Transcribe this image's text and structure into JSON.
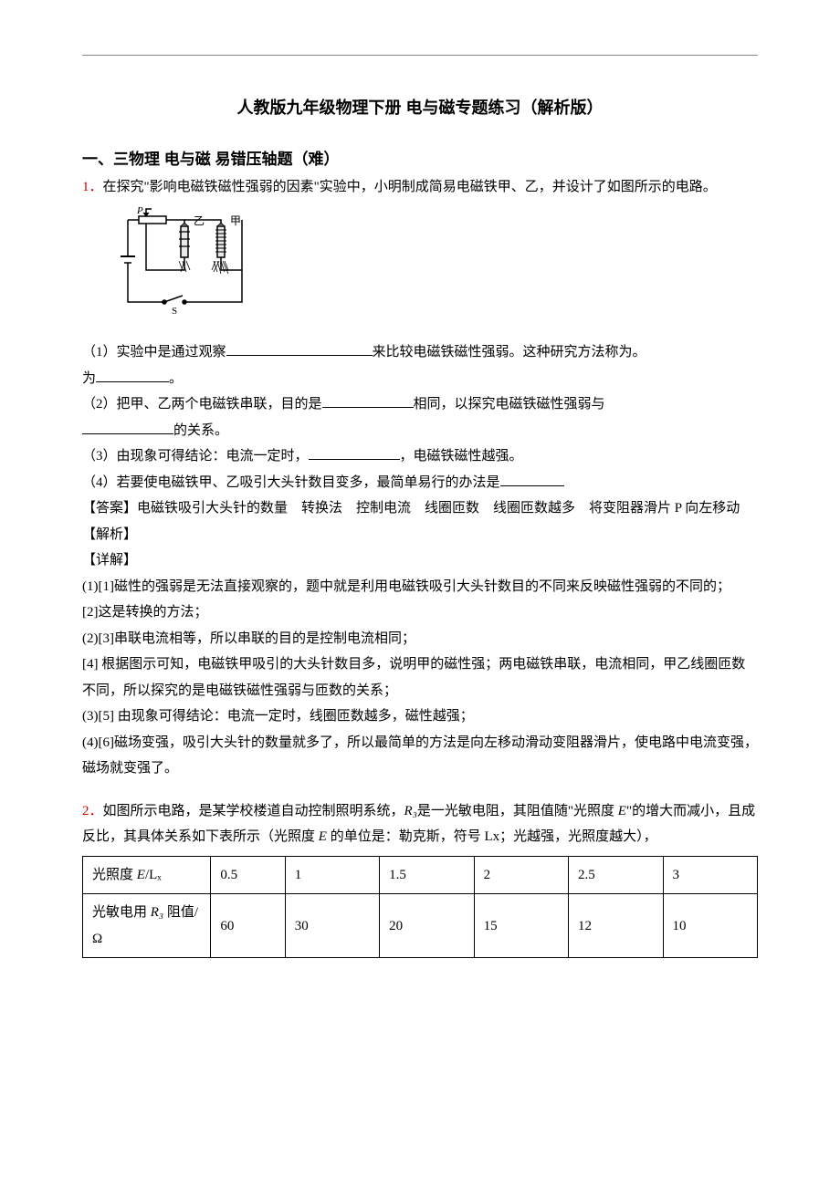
{
  "title": "人教版九年级物理下册 电与磁专题练习（解析版）",
  "section_heading": "一、三物理 电与磁 易错压轴题（难）",
  "q1": {
    "num": "1．",
    "text": "在探究\"影响电磁铁磁性强弱的因素\"实验中，小明制成简易电磁铁甲、乙，并设计了如图所示的电路。",
    "sub1_a": "（1）实验中是通过观察",
    "sub1_b": "来比较电磁铁磁性强弱。这种研究方法称为",
    "sub1_c": "。",
    "sub2_a": "（2）把甲、乙两个电磁铁串联，目的是",
    "sub2_b": "相同，以探究电磁铁磁性强弱与",
    "sub2_c": "的关系。",
    "sub3_a": "（3）由现象可得结论：电流一定时，",
    "sub3_b": "，电磁铁磁性越强。",
    "sub4_a": "（4）若要使电磁铁甲、乙吸引大头针数目变多，最简单易行的办法是",
    "ans_label": "【答案】",
    "ans_text": "电磁铁吸引大头针的数量　转换法　控制电流　线圈匝数　线圈匝数越多　将变阻器滑片 P 向左移动",
    "parse_label": "【解析】",
    "detail_label": "【详解】",
    "d1": "(1)[1]磁性的强弱是无法直接观察的，题中就是利用电磁铁吸引大头针数目的不同来反映磁性强弱的不同的；",
    "d2": "[2]这是转换的方法；",
    "d3": "(2)[3]串联电流相等，所以串联的目的是控制电流相同；",
    "d4": "[4] 根据图示可知，电磁铁甲吸引的大头针数目多，说明甲的磁性强；两电磁铁串联，电流相同，甲乙线圈匝数不同，所以探究的是电磁铁磁性强弱与匝数的关系；",
    "d5": "(3)[5] 由现象可得结论：电流一定时，线圈匝数越多，磁性越强；",
    "d6": "(4)[6]磁场变强，吸引大头针的数量就多了，所以最简单的方法是向左移动滑动变阻器滑片，使电路中电流变强，磁场就变强了。"
  },
  "q2": {
    "num": "2．",
    "intro_a": "如图所示电路，是某学校楼道自动控制照明系统，",
    "r3": "R₃",
    "intro_b": "是一光敏电阻，其阻值随\"光照度 ",
    "e1": "E",
    "intro_c": "\"的增大而减小，且成反比，其具体关系如下表所示（光照度 ",
    "e2": "E",
    "intro_d": " 的单位是：勒克斯，符号 Lx；光越强，光照度越大），",
    "table": {
      "row1_label_a": "光照度 ",
      "row1_label_e": "E",
      "row1_label_b": "/Lₓ",
      "row2_label_a": "光敏电用 ",
      "row2_label_r": "R₃",
      "row2_label_b": " 阻值/Ω",
      "headers": [
        "0.5",
        "1",
        "1.5",
        "2",
        "2.5",
        "3"
      ],
      "values": [
        "60",
        "30",
        "20",
        "15",
        "12",
        "10"
      ],
      "col_widths": [
        "19%",
        "11%",
        "14%",
        "14%",
        "14%",
        "14%",
        "14%"
      ]
    }
  },
  "blanks": {
    "long": "160px",
    "med": "100px",
    "short": "80px",
    "tiny": "70px"
  },
  "figure": {
    "labels": {
      "p": "P",
      "yi": "乙",
      "jia": "甲",
      "s": "S"
    },
    "colors": {
      "stroke": "#000000",
      "bg": "#ffffff"
    }
  }
}
